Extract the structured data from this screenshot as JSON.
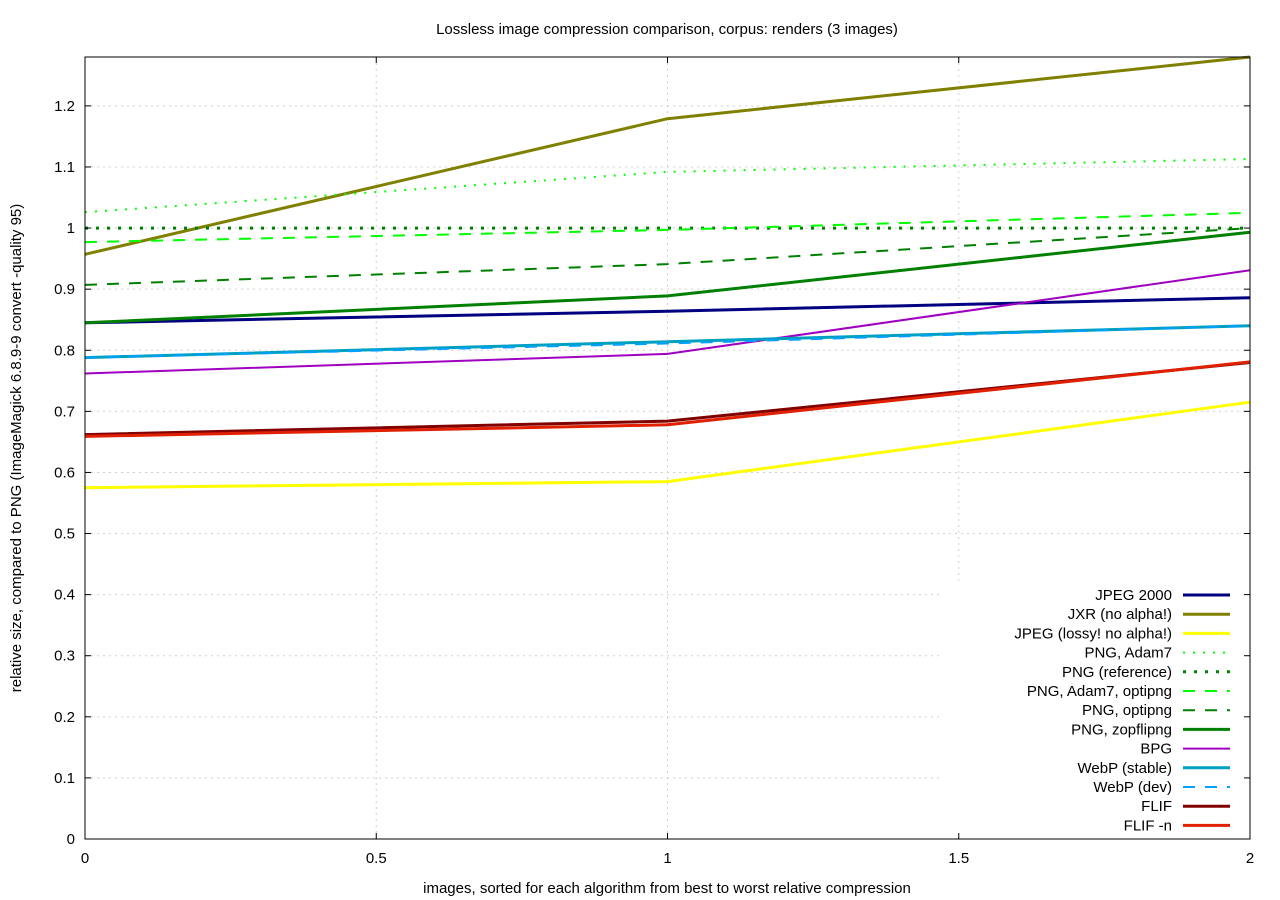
{
  "chart_data": {
    "type": "line",
    "title": "Lossless image compression comparison, corpus: renders (3 images)",
    "xlabel": "images, sorted for each algorithm from best to worst relative compression",
    "ylabel": "relative size, compared to PNG (ImageMagick 6.8.9-9 convert -quality 95)",
    "xlim": [
      0,
      2
    ],
    "ylim": [
      0,
      1.28
    ],
    "xticks": [
      0,
      0.5,
      1,
      1.5,
      2
    ],
    "xtick_labels": [
      "0",
      "0.5",
      "1",
      "1.5",
      "2"
    ],
    "yticks": [
      0,
      0.1,
      0.2,
      0.3,
      0.4,
      0.5,
      0.6,
      0.7,
      0.8,
      0.9,
      1,
      1.1,
      1.2
    ],
    "ytick_labels": [
      "0",
      "0.1",
      "0.2",
      "0.3",
      "0.4",
      "0.5",
      "0.6",
      "0.7",
      "0.8",
      "0.9",
      "1",
      "1.1",
      "1.2"
    ],
    "grid": true,
    "legend_position": "bottom-right",
    "x": [
      0,
      1,
      2
    ],
    "series": [
      {
        "name": "JPEG 2000",
        "values": [
          0.845,
          0.864,
          0.886
        ],
        "color": "#000080",
        "style": "solid",
        "width": 3
      },
      {
        "name": "JXR (no alpha!)",
        "values": [
          0.957,
          1.179,
          1.293
        ],
        "color": "#808000",
        "style": "solid",
        "width": 3
      },
      {
        "name": "JPEG (lossy! no alpha!)",
        "values": [
          0.575,
          0.585,
          0.715
        ],
        "color": "#ffff00",
        "style": "solid",
        "width": 3
      },
      {
        "name": "PNG, Adam7",
        "values": [
          1.026,
          1.092,
          1.113
        ],
        "color": "#00ff00",
        "style": "dotted",
        "width": 2
      },
      {
        "name": "PNG (reference)",
        "values": [
          1.0,
          1.0,
          1.0
        ],
        "color": "#008000",
        "style": "dotted-bold",
        "width": 3
      },
      {
        "name": "PNG, Adam7, optipng",
        "values": [
          0.977,
          0.997,
          1.025
        ],
        "color": "#00ff00",
        "style": "dashed",
        "width": 2
      },
      {
        "name": "PNG, optipng",
        "values": [
          0.907,
          0.941,
          1.0
        ],
        "color": "#008000",
        "style": "dashed",
        "width": 2
      },
      {
        "name": "PNG, zopflipng",
        "values": [
          0.845,
          0.889,
          0.993
        ],
        "color": "#008000",
        "style": "solid",
        "width": 3
      },
      {
        "name": "BPG",
        "values": [
          0.762,
          0.794,
          0.931
        ],
        "color": "#a000c0",
        "style": "solid",
        "width": 2
      },
      {
        "name": "WebP (stable)",
        "values": [
          0.788,
          0.814,
          0.84
        ],
        "color": "#00a0c0",
        "style": "solid",
        "width": 3
      },
      {
        "name": "WebP (dev)",
        "values": [
          0.788,
          0.811,
          0.84
        ],
        "color": "#00a0ff",
        "style": "dashed",
        "width": 2
      },
      {
        "name": "FLIF",
        "values": [
          0.662,
          0.684,
          0.78
        ],
        "color": "#800000",
        "style": "solid",
        "width": 3
      },
      {
        "name": "FLIF -n",
        "values": [
          0.659,
          0.678,
          0.781
        ],
        "color": "#e02000",
        "style": "solid",
        "width": 3
      }
    ]
  }
}
